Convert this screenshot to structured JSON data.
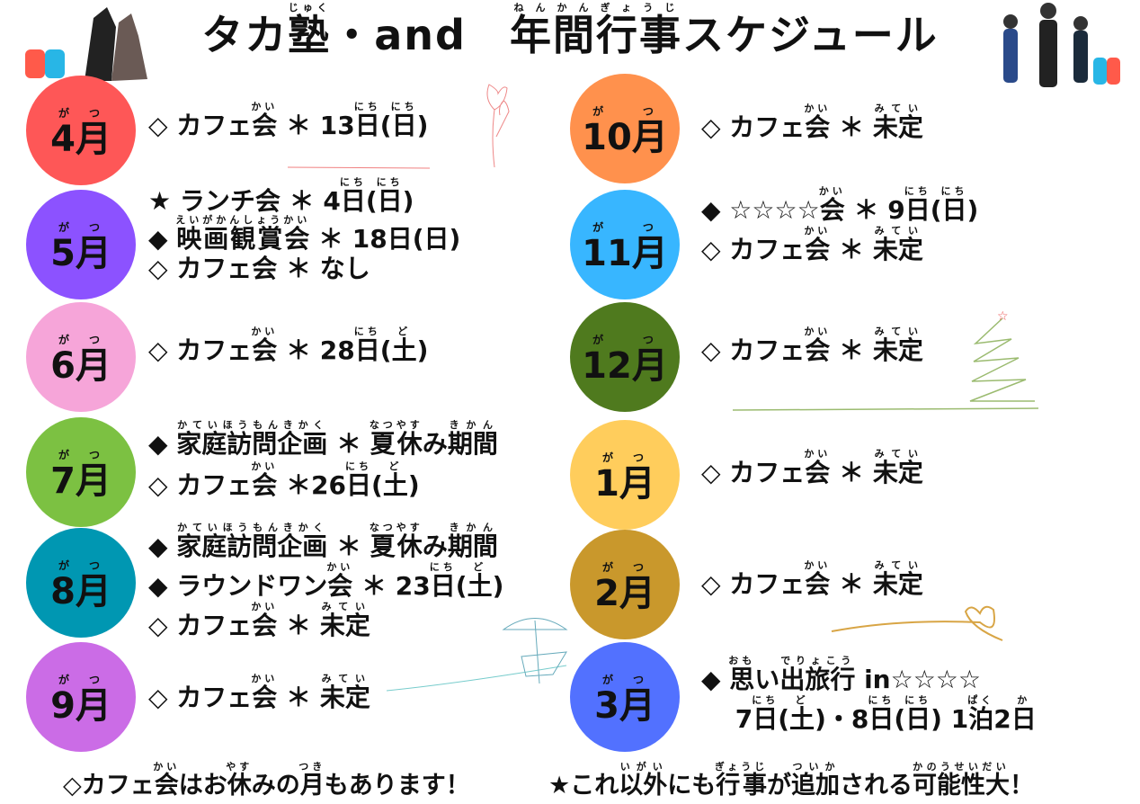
{
  "title": [
    {
      "t": "タカ"
    },
    {
      "t": "塾",
      "r": "じゅく"
    },
    {
      "t": "・and　"
    },
    {
      "t": "年間",
      "r": "ねんかん"
    },
    {
      "t": "行事",
      "r": "ぎょうじ"
    },
    {
      "t": "スケジュール"
    }
  ],
  "month_ruby": "がつ",
  "months": [
    {
      "label": "4月",
      "color": "#fe5757",
      "lines": [
        [
          {
            "t": "◇ カフェ"
          },
          {
            "t": "会",
            "r": "かい"
          },
          {
            "t": " ＊ 13"
          },
          {
            "t": "日",
            "r": "にち"
          },
          {
            "t": "("
          },
          {
            "t": "日",
            "r": "にち"
          },
          {
            "t": ")"
          }
        ]
      ]
    },
    {
      "label": "5月",
      "color": "#8c52ff",
      "lines": [
        [
          {
            "t": "★ ランチ会 ＊ 4"
          },
          {
            "t": "日",
            "r": "にち"
          },
          {
            "t": "("
          },
          {
            "t": "日",
            "r": "にち"
          },
          {
            "t": ")"
          }
        ],
        [
          {
            "t": "◆ "
          },
          {
            "t": "映画観賞会",
            "r": "えいがかんしょうかい"
          },
          {
            "t": " ＊ 18日(日)"
          }
        ],
        [
          {
            "t": "◇ カフェ会 ＊ なし"
          }
        ]
      ]
    },
    {
      "label": "6月",
      "color": "#f6a5d9",
      "lines": [
        [
          {
            "t": "◇ カフェ"
          },
          {
            "t": "会",
            "r": "かい"
          },
          {
            "t": " ＊ 28"
          },
          {
            "t": "日",
            "r": "にち"
          },
          {
            "t": "("
          },
          {
            "t": "土",
            "r": "ど"
          },
          {
            "t": ")"
          }
        ]
      ]
    },
    {
      "label": "7月",
      "color": "#7cc142",
      "lines": [
        [
          {
            "t": "◆ "
          },
          {
            "t": "家庭訪問企画",
            "r": "かていほうもんきかく"
          },
          {
            "t": " ＊ "
          },
          {
            "t": "夏休",
            "r": "なつやす"
          },
          {
            "t": "み"
          },
          {
            "t": "期間",
            "r": "きかん"
          }
        ],
        [
          {
            "t": "◇ カフェ"
          },
          {
            "t": "会",
            "r": "かい"
          },
          {
            "t": " ＊26"
          },
          {
            "t": "日",
            "r": "にち"
          },
          {
            "t": "("
          },
          {
            "t": "土",
            "r": "ど"
          },
          {
            "t": ")"
          }
        ]
      ]
    },
    {
      "label": "8月",
      "color": "#0097b2",
      "lines": [
        [
          {
            "t": "◆ "
          },
          {
            "t": "家庭訪問企画",
            "r": "かていほうもんきかく"
          },
          {
            "t": " ＊ "
          },
          {
            "t": "夏休",
            "r": "なつやす"
          },
          {
            "t": "み"
          },
          {
            "t": "期間",
            "r": "きかん"
          }
        ],
        [
          {
            "t": "◆ ラウンドワン"
          },
          {
            "t": "会",
            "r": "かい"
          },
          {
            "t": " ＊ 23"
          },
          {
            "t": "日",
            "r": "にち"
          },
          {
            "t": "("
          },
          {
            "t": "土",
            "r": "ど"
          },
          {
            "t": ")"
          }
        ],
        [
          {
            "t": "◇ カフェ"
          },
          {
            "t": "会",
            "r": "かい"
          },
          {
            "t": " ＊ "
          },
          {
            "t": "未定",
            "r": "みてい"
          }
        ]
      ]
    },
    {
      "label": "9月",
      "color": "#cb6ce6",
      "lines": [
        [
          {
            "t": "◇ カフェ"
          },
          {
            "t": "会",
            "r": "かい"
          },
          {
            "t": " ＊ "
          },
          {
            "t": "未定",
            "r": "みてい"
          }
        ]
      ]
    },
    {
      "label": "10月",
      "color": "#ff914d",
      "lines": [
        [
          {
            "t": "◇ カフェ"
          },
          {
            "t": "会",
            "r": "かい"
          },
          {
            "t": " ＊ "
          },
          {
            "t": "未定",
            "r": "みてい"
          }
        ]
      ]
    },
    {
      "label": "11月",
      "color": "#38b6ff",
      "lines": [
        [
          {
            "t": "◆ ☆☆☆☆"
          },
          {
            "t": "会",
            "r": "かい"
          },
          {
            "t": " ＊ 9"
          },
          {
            "t": "日",
            "r": "にち"
          },
          {
            "t": "("
          },
          {
            "t": "日",
            "r": "にち"
          },
          {
            "t": ")"
          }
        ],
        [
          {
            "t": "◇ カフェ"
          },
          {
            "t": "会",
            "r": "かい"
          },
          {
            "t": " ＊ "
          },
          {
            "t": "未定",
            "r": "みてい"
          }
        ]
      ]
    },
    {
      "label": "12月",
      "color": "#4f7a1e",
      "lines": [
        [
          {
            "t": "◇ カフェ"
          },
          {
            "t": "会",
            "r": "かい"
          },
          {
            "t": " ＊ "
          },
          {
            "t": "未定",
            "r": "みてい"
          }
        ]
      ]
    },
    {
      "label": "1月",
      "color": "#ffcd5c",
      "lines": [
        [
          {
            "t": "◇ カフェ"
          },
          {
            "t": "会",
            "r": "かい"
          },
          {
            "t": " ＊ "
          },
          {
            "t": "未定",
            "r": "みてい"
          }
        ]
      ]
    },
    {
      "label": "2月",
      "color": "#c9982c",
      "lines": [
        [
          {
            "t": "◇ カフェ"
          },
          {
            "t": "会",
            "r": "かい"
          },
          {
            "t": " ＊ "
          },
          {
            "t": "未定",
            "r": "みてい"
          }
        ]
      ]
    },
    {
      "label": "3月",
      "color": "#5271ff",
      "lines": [
        [
          {
            "t": "◆ "
          },
          {
            "t": "思",
            "r": "おも"
          },
          {
            "t": "い"
          },
          {
            "t": "出旅行",
            "r": "でりょこう"
          },
          {
            "t": " in☆☆☆☆"
          }
        ],
        [
          {
            "t": "　 7"
          },
          {
            "t": "日",
            "r": "にち"
          },
          {
            "t": "("
          },
          {
            "t": "土",
            "r": "ど"
          },
          {
            "t": ")・8"
          },
          {
            "t": "日",
            "r": "にち"
          },
          {
            "t": "("
          },
          {
            "t": "日",
            "r": "にち"
          },
          {
            "t": ") 1"
          },
          {
            "t": "泊",
            "r": "ぱく"
          },
          {
            "t": "2"
          },
          {
            "t": "日",
            "r": "か"
          }
        ]
      ]
    }
  ],
  "footer": {
    "left": [
      {
        "t": "◇カフェ"
      },
      {
        "t": "会",
        "r": "かい"
      },
      {
        "t": "はお"
      },
      {
        "t": "休",
        "r": "やす"
      },
      {
        "t": "みの"
      },
      {
        "t": "月",
        "r": "つき"
      },
      {
        "t": "もあります！"
      }
    ],
    "right": [
      {
        "t": "★これ"
      },
      {
        "t": "以外",
        "r": "いがい"
      },
      {
        "t": "にも"
      },
      {
        "t": "行事",
        "r": "ぎょうじ"
      },
      {
        "t": "が"
      },
      {
        "t": "追加",
        "r": "ついか"
      },
      {
        "t": "される"
      },
      {
        "t": "可能性大",
        "r": "かのうせいだい"
      },
      {
        "t": "！"
      }
    ]
  }
}
